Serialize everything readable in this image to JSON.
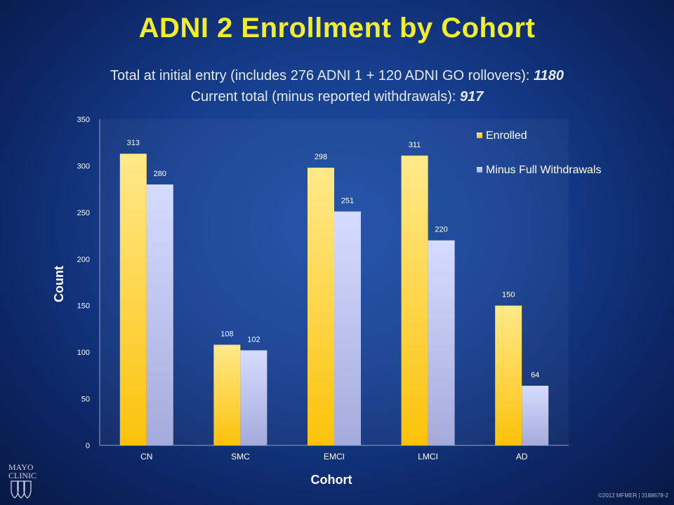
{
  "slide": {
    "title": "ADNI 2 Enrollment by Cohort",
    "subtitle_line1_text": "Total at initial entry (includes 276 ADNI 1 + 120 ADNI GO rollovers):",
    "subtitle_line1_value": "1180",
    "subtitle_line2_text": "Current total (minus reported withdrawals):",
    "subtitle_line2_value": "917",
    "logo_line1": "MAYO",
    "logo_line2": "CLINIC",
    "footer": "©2012 MFMER | 3188678-2"
  },
  "colors": {
    "title": "#f2ee2e",
    "enrolled_top": "#ffe98a",
    "enrolled_bottom": "#fbc20a",
    "withdrawals_top": "#d6dcff",
    "withdrawals_bottom": "#a4abdb",
    "axis_text": "#ffffff"
  },
  "chart_data": {
    "type": "bar",
    "categories": [
      "CN",
      "SMC",
      "EMCI",
      "LMCI",
      "AD"
    ],
    "series": [
      {
        "name": "Enrolled",
        "values": [
          313,
          108,
          298,
          311,
          150
        ]
      },
      {
        "name": "Minus Full Withdrawals",
        "values": [
          280,
          102,
          251,
          220,
          64
        ]
      }
    ],
    "xlabel": "Cohort",
    "ylabel": "Count",
    "ylim": [
      0,
      350
    ],
    "yticks": [
      0,
      50,
      100,
      150,
      200,
      250,
      300,
      350
    ],
    "grid": false,
    "legend": "top-right",
    "data_labels": true
  }
}
